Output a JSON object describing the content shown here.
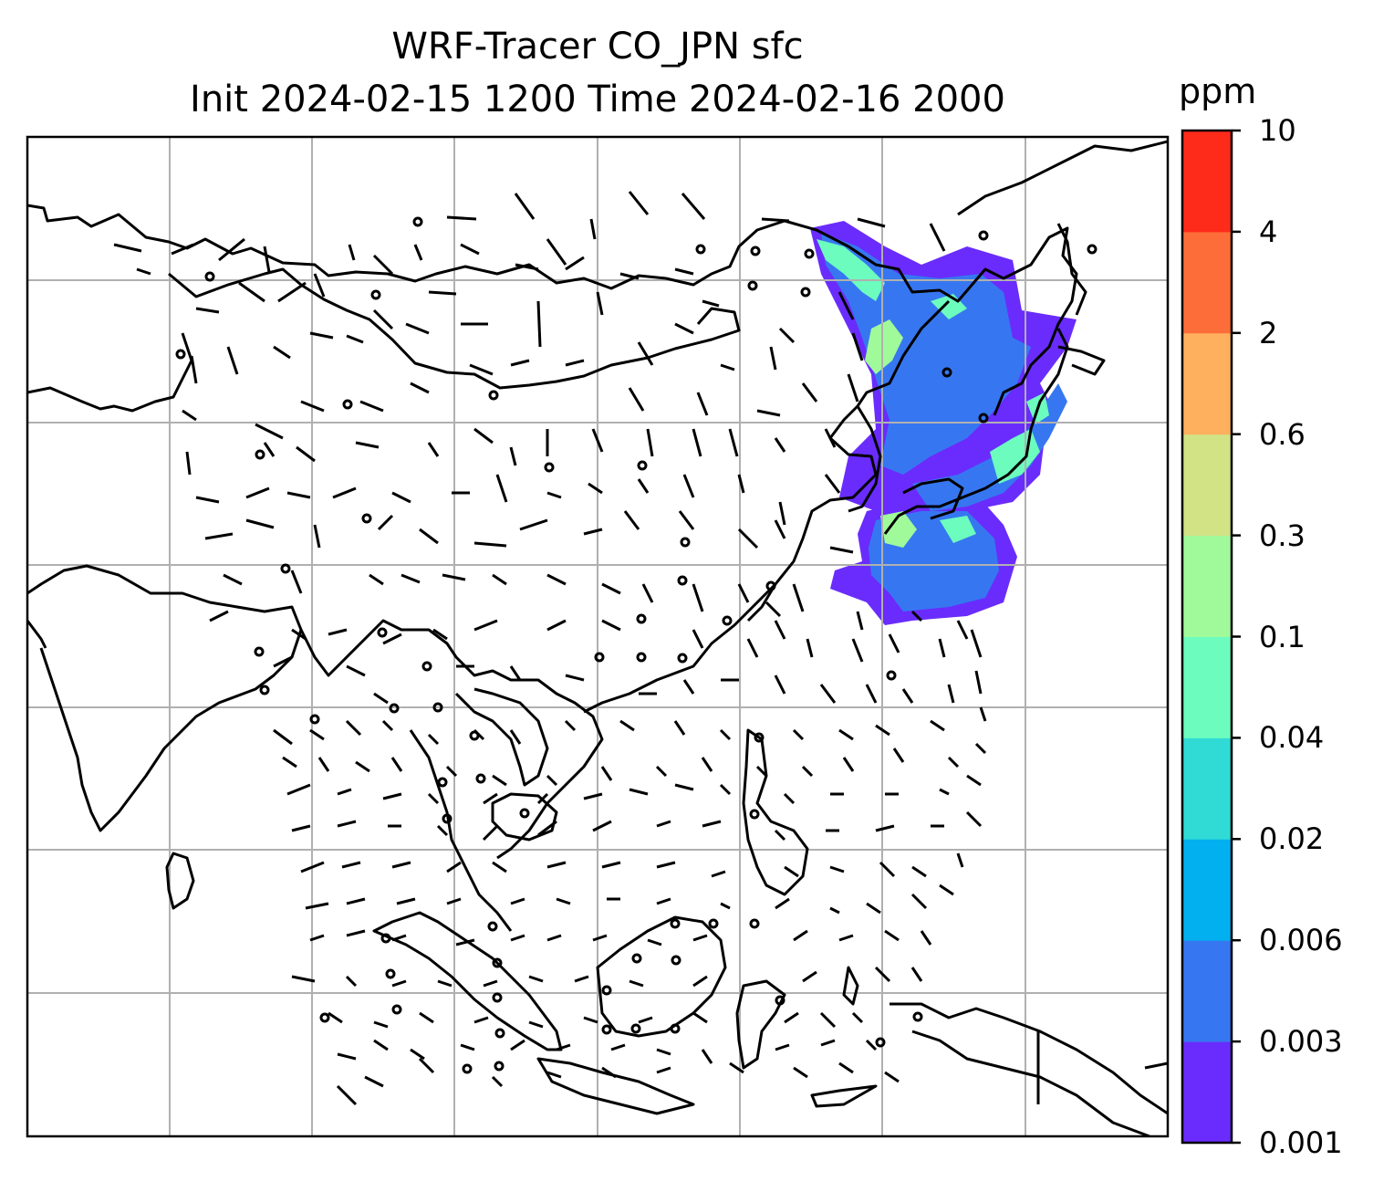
{
  "title": {
    "line1": "WRF-Tracer CO_JPN sfc",
    "line2": "Init 2024-02-15 1200 Time 2024-02-16 2000"
  },
  "colorbar": {
    "unit": "ppm",
    "levels": [
      "0.001",
      "0.003",
      "0.006",
      "0.02",
      "0.04",
      "0.1",
      "0.3",
      "0.6",
      "2",
      "4",
      "10"
    ],
    "colors": [
      "#6a2cfc",
      "#3677f1",
      "#02b0ef",
      "#30dbd6",
      "#6cfcbe",
      "#a0fa9a",
      "#d2e386",
      "#feb05f",
      "#fd6d39",
      "#fe2b1a"
    ]
  },
  "map": {
    "gridlines": "on",
    "coastline_color": "#000000",
    "grid_color": "#b0b0b0",
    "field_name": "CO_JPN",
    "field_colors_used": [
      "#6a2cfc",
      "#3677f1",
      "#6cfcbe",
      "#a0fa9a"
    ]
  }
}
